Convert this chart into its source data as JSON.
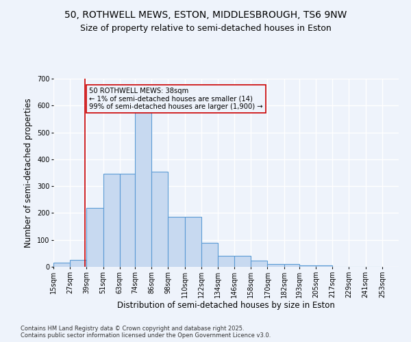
{
  "title_line1": "50, ROTHWELL MEWS, ESTON, MIDDLESBROUGH, TS6 9NW",
  "title_line2": "Size of property relative to semi-detached houses in Eston",
  "xlabel": "Distribution of semi-detached houses by size in Eston",
  "ylabel": "Number of semi-detached properties",
  "annotation_title": "50 ROTHWELL MEWS: 38sqm",
  "annotation_line2": "← 1% of semi-detached houses are smaller (14)",
  "annotation_line3": "99% of semi-detached houses are larger (1,900) →",
  "footnote1": "Contains HM Land Registry data © Crown copyright and database right 2025.",
  "footnote2": "Contains public sector information licensed under the Open Government Licence v3.0.",
  "bar_left_edges": [
    15,
    27,
    39,
    51,
    63,
    74,
    86,
    98,
    110,
    122,
    134,
    146,
    158,
    170,
    182,
    193,
    205,
    217,
    229,
    241
  ],
  "bar_widths": [
    12,
    12,
    12,
    12,
    11,
    12,
    12,
    12,
    12,
    12,
    12,
    12,
    12,
    12,
    11,
    12,
    12,
    12,
    12,
    12
  ],
  "bar_heights": [
    15,
    25,
    220,
    345,
    345,
    640,
    355,
    185,
    185,
    90,
    40,
    40,
    22,
    10,
    10,
    5,
    5,
    0,
    0,
    0
  ],
  "bar_color": "#c7d9f0",
  "bar_edge_color": "#5b9bd5",
  "property_line_x": 38,
  "property_line_color": "#cc0000",
  "annotation_box_color": "#cc0000",
  "ylim": [
    0,
    700
  ],
  "yticks": [
    0,
    100,
    200,
    300,
    400,
    500,
    600,
    700
  ],
  "bin_labels": [
    "15sqm",
    "27sqm",
    "39sqm",
    "51sqm",
    "63sqm",
    "74sqm",
    "86sqm",
    "98sqm",
    "110sqm",
    "122sqm",
    "134sqm",
    "146sqm",
    "158sqm",
    "170sqm",
    "182sqm",
    "193sqm",
    "205sqm",
    "217sqm",
    "229sqm",
    "241sqm",
    "253sqm"
  ],
  "background_color": "#eef3fb",
  "grid_color": "#ffffff",
  "title_fontsize": 10,
  "subtitle_fontsize": 9,
  "axis_label_fontsize": 8.5,
  "tick_fontsize": 7
}
